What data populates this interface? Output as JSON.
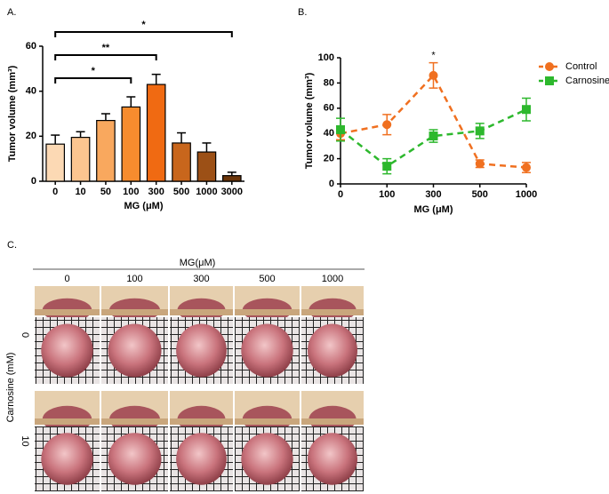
{
  "chart_data": [
    {
      "type": "bar",
      "panel": "A.",
      "ylabel": "Tumor volume (mm³)",
      "xlabel": "MG (μM)",
      "categories": [
        "0",
        "10",
        "50",
        "100",
        "300",
        "500",
        "1000",
        "3000"
      ],
      "values": [
        16.5,
        19.5,
        27,
        33,
        43,
        17,
        13,
        2.5
      ],
      "errors": [
        4,
        2.5,
        3,
        4.5,
        4.5,
        4.5,
        4,
        1.5
      ],
      "colors": [
        "#fcd9b4",
        "#fcc590",
        "#f9a85e",
        "#f78c2e",
        "#f06a12",
        "#c8661c",
        "#9c5016",
        "#6b350a"
      ],
      "ylim": [
        0,
        60
      ],
      "yticks": [
        0,
        20,
        40,
        60
      ],
      "brackets": [
        {
          "from": "0",
          "to": "100",
          "label": "*"
        },
        {
          "from": "0",
          "to": "300",
          "label": "**"
        },
        {
          "from": "0",
          "to": "3000",
          "label": "*"
        }
      ]
    },
    {
      "type": "line",
      "panel": "B.",
      "ylabel": "Tumor volume (mm³)",
      "xlabel": "MG (μM)",
      "categories": [
        "0",
        "100",
        "300",
        "500",
        "1000"
      ],
      "series": [
        {
          "name": "Control",
          "color": "#f07020",
          "marker": "circle",
          "values": [
            40,
            47,
            86,
            16,
            13
          ],
          "errors": [
            5,
            8,
            10,
            3,
            4
          ]
        },
        {
          "name": "Carnosine",
          "color": "#2db82d",
          "marker": "square",
          "values": [
            43,
            14,
            38,
            42,
            59
          ],
          "errors": [
            9,
            6,
            5,
            6,
            9
          ]
        }
      ],
      "ylim": [
        0,
        100
      ],
      "yticks": [
        0,
        20,
        40,
        60,
        80,
        100
      ],
      "legend": "top-right",
      "annotations": [
        {
          "category": "300",
          "label": "*"
        }
      ]
    }
  ],
  "panel_c": {
    "label": "C.",
    "column_title": "MG(μM)",
    "columns": [
      "0",
      "100",
      "300",
      "500",
      "1000"
    ],
    "row_title": "Carnosine (mM)",
    "rows": [
      "0",
      "10"
    ]
  }
}
